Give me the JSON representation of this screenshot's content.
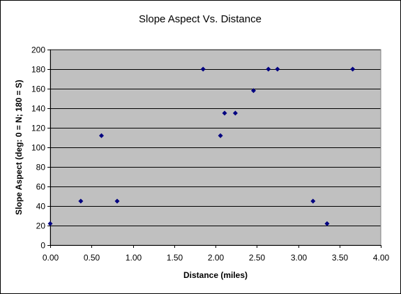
{
  "chart_data": {
    "type": "scatter",
    "title": "Slope Aspect Vs. Distance",
    "xlabel": "Distance (miles)",
    "ylabel": "Slope Aspect (deg: 0 = N; 180 = S)",
    "xlim": [
      0,
      4
    ],
    "ylim": [
      0,
      200
    ],
    "x_ticks": [
      "0.00",
      "0.50",
      "1.00",
      "1.50",
      "2.00",
      "2.50",
      "3.00",
      "3.50",
      "4.00"
    ],
    "y_ticks": [
      "0",
      "20",
      "40",
      "60",
      "80",
      "100",
      "120",
      "140",
      "160",
      "180",
      "200"
    ],
    "grid": "horizontal",
    "legend": "none",
    "plot_background": "#c0c0c0",
    "marker_color": "#000080",
    "series": [
      {
        "points": [
          {
            "x": 0.0,
            "y": 22
          },
          {
            "x": 0.37,
            "y": 45
          },
          {
            "x": 0.62,
            "y": 112
          },
          {
            "x": 0.81,
            "y": 45
          },
          {
            "x": 1.85,
            "y": 180
          },
          {
            "x": 2.06,
            "y": 112
          },
          {
            "x": 2.11,
            "y": 135
          },
          {
            "x": 2.24,
            "y": 135
          },
          {
            "x": 2.46,
            "y": 158
          },
          {
            "x": 2.64,
            "y": 180
          },
          {
            "x": 2.75,
            "y": 180
          },
          {
            "x": 3.18,
            "y": 45
          },
          {
            "x": 3.35,
            "y": 22
          },
          {
            "x": 3.66,
            "y": 180
          }
        ]
      }
    ]
  }
}
